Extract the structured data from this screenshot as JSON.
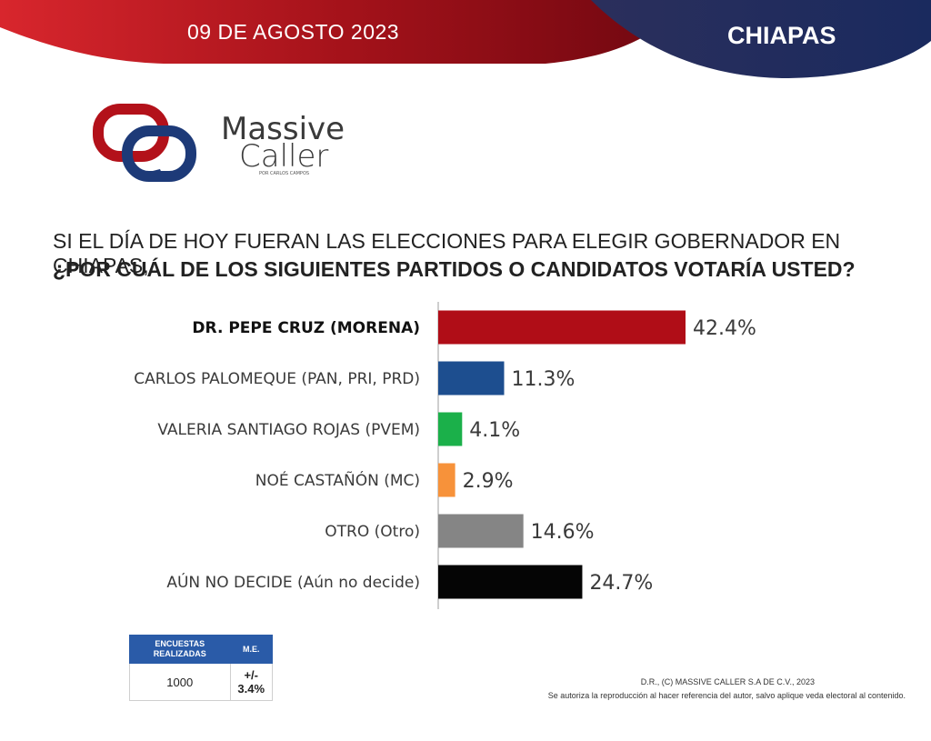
{
  "header": {
    "date": "09 DE AGOSTO 2023",
    "state": "CHIAPAS",
    "colors": {
      "red": "#8e0b12",
      "navy": "#1e2a55"
    }
  },
  "brand": {
    "line1": "Massive",
    "line2": "Caller",
    "subtitle": "POR CARLOS CAMPOS"
  },
  "question": {
    "line1": "SI EL DÍA DE HOY FUERAN LAS ELECCIONES PARA ELEGIR GOBERNADOR EN CHIAPAS,",
    "line2": "¿POR CUÁL DE LOS SIGUIENTES PARTIDOS O CANDIDATOS  VOTARÍA USTED?"
  },
  "chart_data": {
    "type": "bar",
    "orientation": "horizontal",
    "categories": [
      "DR. PEPE CRUZ (MORENA)",
      "CARLOS PALOMEQUE (PAN, PRI, PRD)",
      "VALERIA SANTIAGO ROJAS (PVEM)",
      "NOÉ CASTAÑÓN (MC)",
      "OTRO (Otro)",
      "AÚN NO DECIDE (Aún no decide)"
    ],
    "values": [
      42.4,
      11.3,
      4.1,
      2.9,
      14.6,
      24.7
    ],
    "value_labels": [
      "42.4%",
      "11.3%",
      "4.1%",
      "2.9%",
      "14.6%",
      "24.7%"
    ],
    "colors": [
      "#b00d17",
      "#1d4e8f",
      "#1bb04a",
      "#f7923a",
      "#858585",
      "#050505"
    ],
    "highlight_index": 0,
    "xlim": [
      0,
      50
    ],
    "grid": false,
    "legend": "none"
  },
  "stats_table": {
    "headers": [
      "ENCUESTAS REALIZADAS",
      "M.E."
    ],
    "values": [
      "1000",
      "+/- 3.4%"
    ]
  },
  "footer": {
    "line1": "D.R., (C) MASSIVE CALLER S.A DE C.V., 2023",
    "line2": "Se autoriza la reproducción al hacer referencia del autor, salvo aplique veda electoral al contenido."
  }
}
